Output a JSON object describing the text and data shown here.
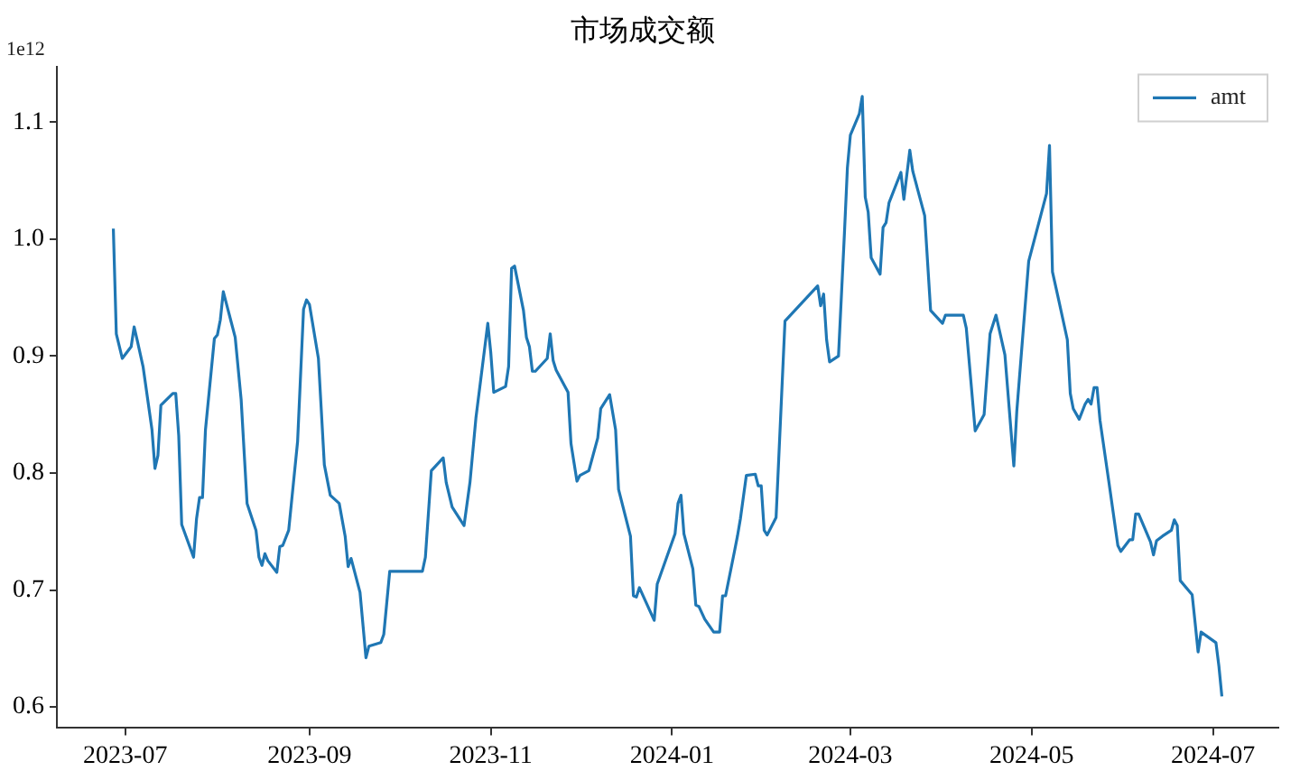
{
  "chart_data": {
    "type": "line",
    "title": "市场成交额",
    "annotations": [
      "1e12"
    ],
    "legend": "top right",
    "grid": false,
    "xlim": [
      "2023-06-08",
      "2024-07-23"
    ],
    "xticks": [
      "2023-07",
      "2023-09",
      "2023-11",
      "2024-01",
      "2024-03",
      "2024-05",
      "2024-07"
    ],
    "ylim": [
      0.582,
      1.147
    ],
    "yticks": [
      0.6,
      0.7,
      0.8,
      0.9,
      {
        "value": 1.0,
        "label": "1.0"
      },
      1.1
    ],
    "x": [
      "2023-06-27",
      "2023-06-28",
      "2023-06-30",
      "2023-07-03",
      "2023-07-04",
      "2023-07-05",
      "2023-07-07",
      "2023-07-10",
      "2023-07-11",
      "2023-07-12",
      "2023-07-13",
      "2023-07-17",
      "2023-07-18",
      "2023-07-19",
      "2023-07-20",
      "2023-07-24",
      "2023-07-25",
      "2023-07-26",
      "2023-07-27",
      "2023-07-28",
      "2023-07-31",
      "2023-08-01",
      "2023-08-02",
      "2023-08-03",
      "2023-08-07",
      "2023-08-09",
      "2023-08-11",
      "2023-08-14",
      "2023-08-15",
      "2023-08-16",
      "2023-08-17",
      "2023-08-18",
      "2023-08-21",
      "2023-08-22",
      "2023-08-23",
      "2023-08-25",
      "2023-08-28",
      "2023-08-30",
      "2023-08-31",
      "2023-09-01",
      "2023-09-04",
      "2023-09-06",
      "2023-09-08",
      "2023-09-11",
      "2023-09-13",
      "2023-09-14",
      "2023-09-15",
      "2023-09-18",
      "2023-09-20",
      "2023-09-21",
      "2023-09-25",
      "2023-09-26",
      "2023-09-28",
      "2023-10-09",
      "2023-10-10",
      "2023-10-12",
      "2023-10-16",
      "2023-10-17",
      "2023-10-19",
      "2023-10-23",
      "2023-10-25",
      "2023-10-27",
      "2023-10-31",
      "2023-11-01",
      "2023-11-02",
      "2023-11-06",
      "2023-11-07",
      "2023-11-08",
      "2023-11-09",
      "2023-11-12",
      "2023-11-13",
      "2023-11-14",
      "2023-11-15",
      "2023-11-16",
      "2023-11-20",
      "2023-11-21",
      "2023-11-22",
      "2023-11-23",
      "2023-11-27",
      "2023-11-28",
      "2023-11-30",
      "2023-12-01",
      "2023-12-04",
      "2023-12-07",
      "2023-12-08",
      "2023-12-11",
      "2023-12-13",
      "2023-12-14",
      "2023-12-18",
      "2023-12-19",
      "2023-12-20",
      "2023-12-21",
      "2023-12-26",
      "2023-12-27",
      "2024-01-02",
      "2024-01-03",
      "2024-01-04",
      "2024-01-05",
      "2024-01-08",
      "2024-01-09",
      "2024-01-10",
      "2024-01-12",
      "2024-01-15",
      "2024-01-17",
      "2024-01-18",
      "2024-01-19",
      "2024-01-22",
      "2024-01-23",
      "2024-01-24",
      "2024-01-26",
      "2024-01-29",
      "2024-01-30",
      "2024-01-31",
      "2024-02-01",
      "2024-02-02",
      "2024-02-05",
      "2024-02-08",
      "2024-02-19",
      "2024-02-20",
      "2024-02-21",
      "2024-02-22",
      "2024-02-23",
      "2024-02-26",
      "2024-02-28",
      "2024-02-29",
      "2024-03-01",
      "2024-03-04",
      "2024-03-05",
      "2024-03-06",
      "2024-03-07",
      "2024-03-08",
      "2024-03-11",
      "2024-03-12",
      "2024-03-13",
      "2024-03-14",
      "2024-03-18",
      "2024-03-19",
      "2024-03-21",
      "2024-03-22",
      "2024-03-26",
      "2024-03-28",
      "2024-04-01",
      "2024-04-02",
      "2024-04-08",
      "2024-04-09",
      "2024-04-12",
      "2024-04-15",
      "2024-04-17",
      "2024-04-19",
      "2024-04-22",
      "2024-04-25",
      "2024-04-26",
      "2024-04-30",
      "2024-05-06",
      "2024-05-07",
      "2024-05-08",
      "2024-05-10",
      "2024-05-13",
      "2024-05-14",
      "2024-05-15",
      "2024-05-17",
      "2024-05-19",
      "2024-05-20",
      "2024-05-21",
      "2024-05-22",
      "2024-05-23",
      "2024-05-24",
      "2024-05-27",
      "2024-05-30",
      "2024-05-31",
      "2024-06-03",
      "2024-06-04",
      "2024-06-05",
      "2024-06-06",
      "2024-06-10",
      "2024-06-11",
      "2024-06-12",
      "2024-06-14",
      "2024-06-17",
      "2024-06-18",
      "2024-06-19",
      "2024-06-20",
      "2024-06-24",
      "2024-06-25",
      "2024-06-26",
      "2024-06-27",
      "2024-07-02",
      "2024-07-03",
      "2024-07-04"
    ],
    "series": [
      {
        "name": "amt",
        "color": "#1f77b4",
        "values": [
          1.009,
          0.919,
          0.898,
          0.908,
          0.925,
          0.914,
          0.891,
          0.837,
          0.804,
          0.815,
          0.858,
          0.868,
          0.868,
          0.832,
          0.756,
          0.728,
          0.761,
          0.779,
          0.779,
          0.837,
          0.915,
          0.918,
          0.931,
          0.955,
          0.916,
          0.863,
          0.774,
          0.751,
          0.728,
          0.721,
          0.731,
          0.725,
          0.715,
          0.737,
          0.738,
          0.751,
          0.827,
          0.94,
          0.948,
          0.944,
          0.898,
          0.807,
          0.781,
          0.774,
          0.746,
          0.72,
          0.727,
          0.698,
          0.642,
          0.652,
          0.655,
          0.662,
          0.716,
          0.716,
          0.728,
          0.802,
          0.813,
          0.792,
          0.771,
          0.755,
          0.792,
          0.847,
          0.928,
          0.903,
          0.869,
          0.874,
          0.891,
          0.975,
          0.977,
          0.939,
          0.916,
          0.908,
          0.887,
          0.887,
          0.898,
          0.919,
          0.896,
          0.888,
          0.869,
          0.825,
          0.793,
          0.798,
          0.802,
          0.83,
          0.855,
          0.867,
          0.837,
          0.786,
          0.746,
          0.695,
          0.694,
          0.702,
          0.674,
          0.705,
          0.748,
          0.774,
          0.781,
          0.748,
          0.718,
          0.687,
          0.686,
          0.675,
          0.664,
          0.664,
          0.695,
          0.695,
          0.733,
          0.746,
          0.761,
          0.798,
          0.799,
          0.789,
          0.789,
          0.751,
          0.747,
          0.762,
          0.93,
          0.96,
          0.943,
          0.953,
          0.914,
          0.895,
          0.9,
          1.005,
          1.061,
          1.089,
          1.107,
          1.122,
          1.036,
          1.023,
          0.984,
          0.97,
          1.01,
          1.014,
          1.031,
          1.057,
          1.034,
          1.076,
          1.058,
          1.02,
          0.939,
          0.928,
          0.935,
          0.935,
          0.924,
          0.836,
          0.85,
          0.919,
          0.935,
          0.901,
          0.806,
          0.853,
          0.981,
          1.039,
          1.08,
          0.972,
          0.949,
          0.914,
          0.868,
          0.855,
          0.846,
          0.859,
          0.863,
          0.859,
          0.873,
          0.873,
          0.845,
          0.792,
          0.738,
          0.733,
          0.743,
          0.743,
          0.765,
          0.765,
          0.741,
          0.73,
          0.742,
          0.746,
          0.751,
          0.76,
          0.755,
          0.708,
          0.696,
          0.672,
          0.647,
          0.664,
          0.655,
          0.635,
          0.609
        ]
      }
    ]
  }
}
